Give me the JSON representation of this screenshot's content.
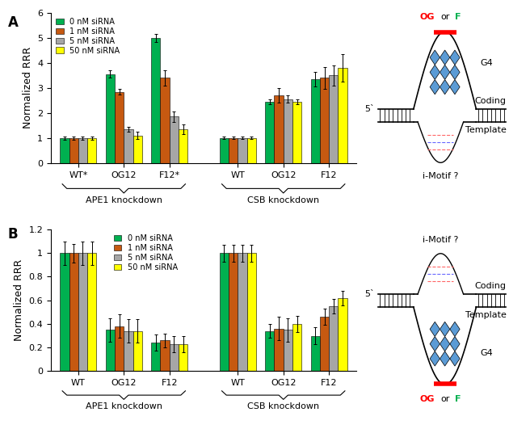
{
  "chart_data": [
    {
      "panel": "A",
      "type": "bar",
      "ylabel": "Normalized RRR",
      "ylim": [
        0,
        6
      ],
      "yticks": [
        0,
        1,
        2,
        3,
        4,
        5,
        6
      ],
      "legend": "upper left",
      "groups": [
        {
          "label": "APE1 knockdown",
          "categories": [
            "WT*",
            "OG12",
            "F12*"
          ]
        },
        {
          "label": "CSB knockdown",
          "categories": [
            "WT",
            "OG12",
            "F12"
          ]
        }
      ],
      "series": [
        {
          "name": "0 nM siRNA",
          "color": "#00B050",
          "values": [
            1,
            3.55,
            5.0,
            1,
            2.45,
            3.35
          ],
          "errors": [
            0.07,
            0.15,
            0.15,
            0.05,
            0.1,
            0.3
          ]
        },
        {
          "name": "1 nM siRNA",
          "color": "#C65911",
          "values": [
            1,
            2.85,
            3.4,
            1,
            2.7,
            3.4
          ],
          "errors": [
            0.07,
            0.1,
            0.3,
            0.05,
            0.3,
            0.45
          ]
        },
        {
          "name": "5 nM siRNA",
          "color": "#A6A6A6",
          "values": [
            1,
            1.35,
            1.85,
            1,
            2.55,
            3.5
          ],
          "errors": [
            0.07,
            0.1,
            0.2,
            0.05,
            0.15,
            0.4
          ]
        },
        {
          "name": "50 nM siRNA",
          "color": "#FFFF00",
          "values": [
            1,
            1.1,
            1.35,
            1,
            2.45,
            3.8
          ],
          "errors": [
            0.07,
            0.15,
            0.2,
            0.05,
            0.1,
            0.55
          ]
        }
      ]
    },
    {
      "panel": "B",
      "type": "bar",
      "ylabel": "Normalized RRR",
      "ylim": [
        0,
        1.2
      ],
      "yticks": [
        0,
        0.2,
        0.4,
        0.6,
        0.8,
        1,
        1.2
      ],
      "legend": "upper left",
      "groups": [
        {
          "label": "APE1 knockdown",
          "categories": [
            "WT",
            "OG12",
            "F12"
          ]
        },
        {
          "label": "CSB knockdown",
          "categories": [
            "WT",
            "OG12",
            "F12"
          ]
        }
      ],
      "series": [
        {
          "name": "0 nM siRNA",
          "color": "#00B050",
          "values": [
            1,
            0.35,
            0.24,
            1,
            0.34,
            0.3
          ],
          "errors": [
            0.1,
            0.1,
            0.07,
            0.07,
            0.06,
            0.07
          ]
        },
        {
          "name": "1 nM siRNA",
          "color": "#C65911",
          "values": [
            1,
            0.38,
            0.26,
            1,
            0.36,
            0.46
          ],
          "errors": [
            0.08,
            0.1,
            0.06,
            0.07,
            0.1,
            0.07
          ]
        },
        {
          "name": "5 nM siRNA",
          "color": "#A6A6A6",
          "values": [
            1,
            0.34,
            0.23,
            1,
            0.35,
            0.55
          ],
          "errors": [
            0.1,
            0.1,
            0.07,
            0.07,
            0.1,
            0.06
          ]
        },
        {
          "name": "50 nM siRNA",
          "color": "#FFFF00",
          "values": [
            1,
            0.34,
            0.23,
            1,
            0.4,
            0.62
          ],
          "errors": [
            0.1,
            0.1,
            0.07,
            0.07,
            0.07,
            0.06
          ]
        }
      ]
    }
  ],
  "diagrams": [
    {
      "g4_strand": "coding",
      "modification": [
        {
          "text": "OG",
          "color": "#FF0000"
        },
        {
          "text": "or",
          "color": "#000000"
        },
        {
          "text": "F",
          "color": "#00B050"
        }
      ],
      "g4": "G4",
      "five_prime": "5`",
      "coding": "Coding",
      "template": "Template",
      "i_motif": "i-Motif ?"
    },
    {
      "g4_strand": "template",
      "modification": [
        {
          "text": "OG",
          "color": "#FF0000"
        },
        {
          "text": "or",
          "color": "#000000"
        },
        {
          "text": "F",
          "color": "#00B050"
        }
      ],
      "g4": "G4",
      "five_prime": "5`",
      "coding": "Coding",
      "template": "Template",
      "i_motif": "i-Motif ?"
    }
  ]
}
